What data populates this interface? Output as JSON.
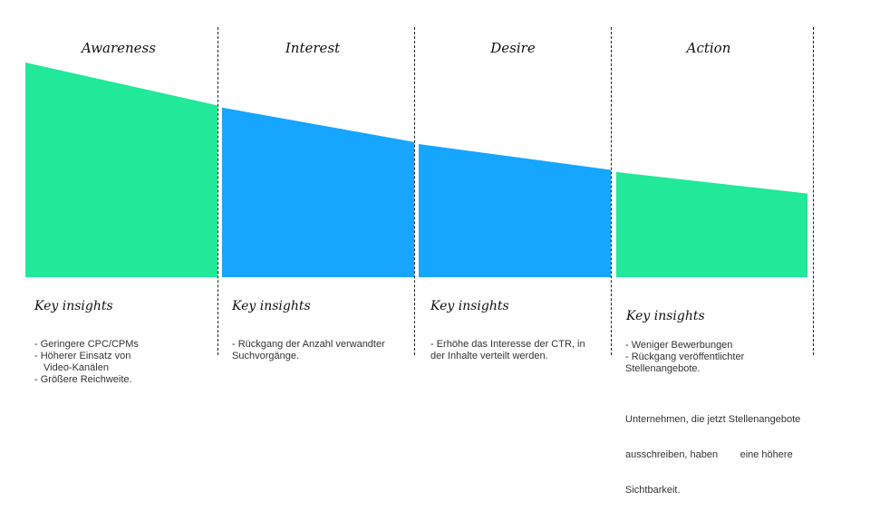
{
  "stages": [
    {
      "title": "Awareness",
      "level_start": 1.0,
      "level_end": 0.8,
      "color": "#22e89a"
    },
    {
      "title": "Interest",
      "level_start": 0.79,
      "level_end": 0.63,
      "color": "#16a6ff"
    },
    {
      "title": "Desire",
      "level_start": 0.62,
      "level_end": 0.5,
      "color": "#16a6ff"
    },
    {
      "title": "Action",
      "level_start": 0.49,
      "level_end": 0.39,
      "color": "#22e89a"
    }
  ],
  "insights": [
    {
      "heading": "Key insights",
      "items": [
        "- Geringere CPC/CPMs",
        "- Höherer Einsatz von",
        "Video-Kanälen",
        "- Größere Reichweite."
      ]
    },
    {
      "heading": "Key insights",
      "items": [
        "- Rückgang der Anzahl verwandter",
        "Suchvorgänge."
      ]
    },
    {
      "heading": "Key insights",
      "items": [
        "- Erhöhe das Interesse der CTR, in",
        "der Inhalte verteilt werden."
      ]
    },
    {
      "heading": "Key insights",
      "items": [
        "- Weniger Bewerbungen",
        "- Rückgang veröffentlichter",
        "Stellenangebote."
      ],
      "note_lines": [
        "Unternehmen, die jetzt Stellenangebote",
        "ausschreiben, haben        eine höhere",
        "Sichtbarkeit."
      ]
    }
  ]
}
